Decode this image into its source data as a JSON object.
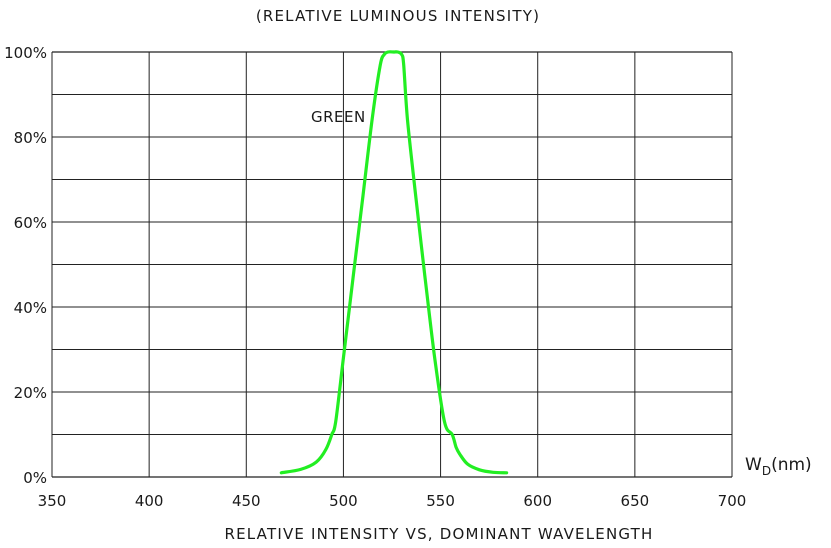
{
  "chart_data": {
    "type": "line",
    "title": "(RELATIVE LUMINOUS INTENSITY)",
    "xlabel": "RELATIVE INTENSITY VS, DOMINANT WAVELENGTH",
    "x_unit_label": {
      "main": "W",
      "sub": "D",
      "suffix": "(nm)"
    },
    "xlim": [
      350,
      700
    ],
    "ylim": [
      0,
      100
    ],
    "x_ticks": [
      350,
      400,
      450,
      500,
      550,
      600,
      650,
      700
    ],
    "x_tick_labels": [
      "350",
      "400",
      "450",
      "500",
      "550",
      "600",
      "650",
      "700"
    ],
    "y_ticks": [
      0,
      20,
      40,
      60,
      80,
      100
    ],
    "y_tick_labels": [
      "0%",
      "20%",
      "40%",
      "60%",
      "80%",
      "100%"
    ],
    "grid": true,
    "series": [
      {
        "name": "GREEN",
        "color": "#22ee22",
        "x": [
          468,
          478,
          486,
          491,
          494,
          496,
          500,
          505,
          510,
          515,
          519,
          521,
          523,
          526,
          528,
          530,
          531,
          533,
          537,
          542,
          547,
          552,
          556,
          558,
          560,
          564,
          570,
          577,
          584
        ],
        "y": [
          1,
          1.8,
          3.5,
          6.5,
          10,
          13,
          28,
          47,
          66,
          85,
          97,
          99.4,
          100,
          100,
          100,
          99.4,
          97,
          84,
          67,
          47,
          28,
          13,
          10,
          7,
          5.3,
          3,
          1.7,
          1.1,
          1
        ]
      }
    ]
  }
}
